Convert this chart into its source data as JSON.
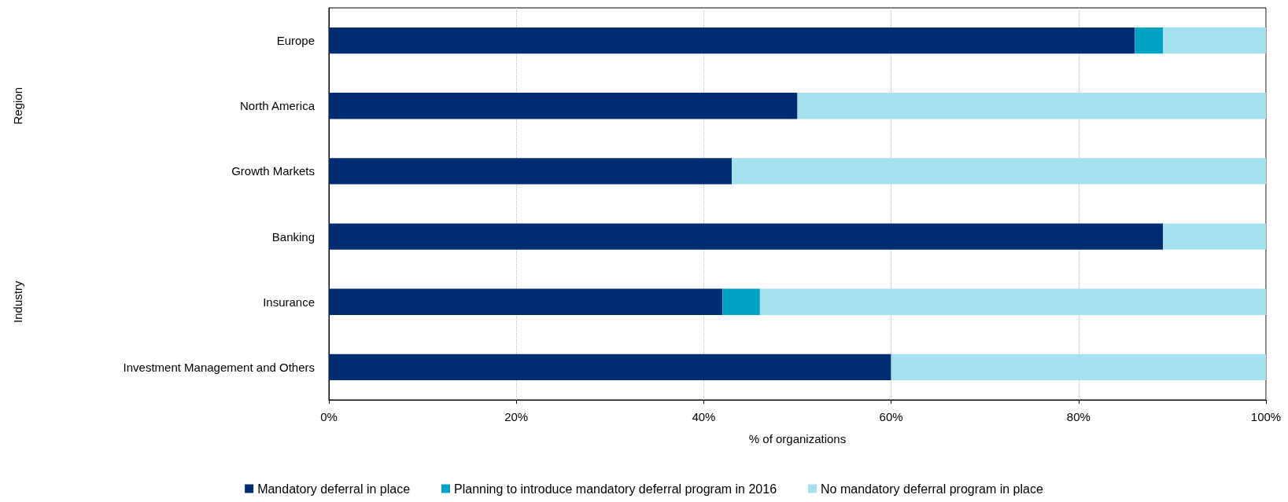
{
  "chart_data": {
    "type": "bar",
    "orientation": "horizontal",
    "stacked": true,
    "xlabel": "% of organizations",
    "categories": [
      "Europe",
      "North America",
      "Growth Markets",
      "Banking",
      "Insurance",
      "Investment Management and Others"
    ],
    "series": [
      {
        "name": "Mandatory deferral in place",
        "color": "#002d72",
        "values": [
          86,
          50,
          43,
          89,
          42,
          60
        ]
      },
      {
        "name": "Planning to introduce mandatory deferral program in 2016",
        "color": "#00a3c4",
        "values": [
          3,
          0,
          0,
          0,
          4,
          0
        ]
      },
      {
        "name": "No mandatory deferral program in place",
        "color": "#a6e1ef",
        "values": [
          11,
          50,
          57,
          11,
          54,
          40
        ]
      }
    ],
    "xlim": [
      0,
      100
    ],
    "xticks": [
      {
        "value": 0,
        "label": "0%"
      },
      {
        "value": 20,
        "label": "20%"
      },
      {
        "value": 40,
        "label": "40%"
      },
      {
        "value": 60,
        "label": "60%"
      },
      {
        "value": 80,
        "label": "80%"
      },
      {
        "value": 100,
        "label": "100%"
      }
    ],
    "grid": "x",
    "legend": "bottom",
    "annotations": [
      "Region",
      "Industry"
    ]
  }
}
